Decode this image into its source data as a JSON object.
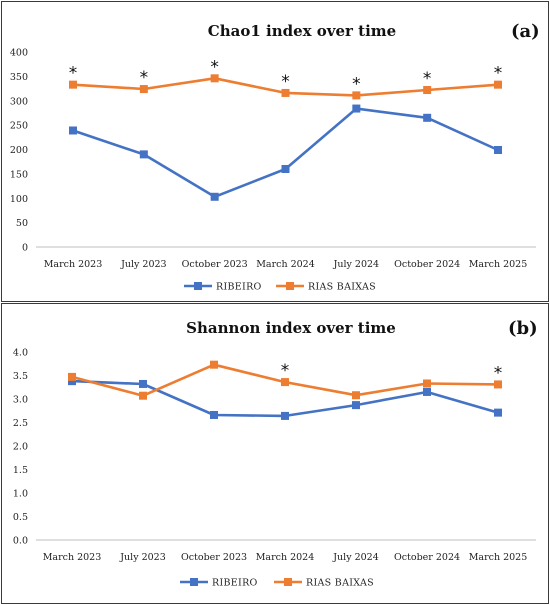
{
  "chart_data": [
    {
      "type": "line",
      "title": "Chao1 index over time",
      "panel_label": "(a)",
      "categories": [
        "March 2023",
        "July 2023",
        "October 2023",
        "March 2024",
        "July 2024",
        "October 2024",
        "March 2025"
      ],
      "series": [
        {
          "name": "RIBEIRO",
          "color": "#4472c4",
          "values": [
            239,
            190,
            103,
            160,
            284,
            265,
            199
          ]
        },
        {
          "name": "RIAS BAIXAS",
          "color": "#ed7d31",
          "values": [
            333,
            324,
            346,
            316,
            311,
            322,
            333
          ]
        }
      ],
      "yticks": [
        "0",
        "50",
        "100",
        "150",
        "200",
        "250",
        "300",
        "350",
        "400"
      ],
      "ylim": [
        0,
        400
      ],
      "significance_marker": "*",
      "significant_categories": [
        0,
        1,
        2,
        3,
        4,
        5,
        6
      ],
      "legend_position": "bottom",
      "grid": false
    },
    {
      "type": "line",
      "title": "Shannon index over time",
      "panel_label": "(b)",
      "categories": [
        "March 2023",
        "July 2023",
        "October 2023",
        "March 2024",
        "July 2024",
        "October 2024",
        "March 2025"
      ],
      "series": [
        {
          "name": "RIBEIRO",
          "color": "#4472c4",
          "values": [
            3.38,
            3.32,
            2.66,
            2.64,
            2.87,
            3.15,
            2.71
          ]
        },
        {
          "name": "RIAS BAIXAS",
          "color": "#ed7d31",
          "values": [
            3.47,
            3.07,
            3.73,
            3.36,
            3.08,
            3.33,
            3.31
          ]
        }
      ],
      "yticks": [
        "0.0",
        "0.5",
        "1.0",
        "1.5",
        "2.0",
        "2.5",
        "3.0",
        "3.5",
        "4.0"
      ],
      "ylim": [
        0,
        4
      ],
      "significance_marker": "*",
      "significant_categories": [
        3,
        6
      ],
      "legend_position": "bottom",
      "grid": false
    }
  ]
}
